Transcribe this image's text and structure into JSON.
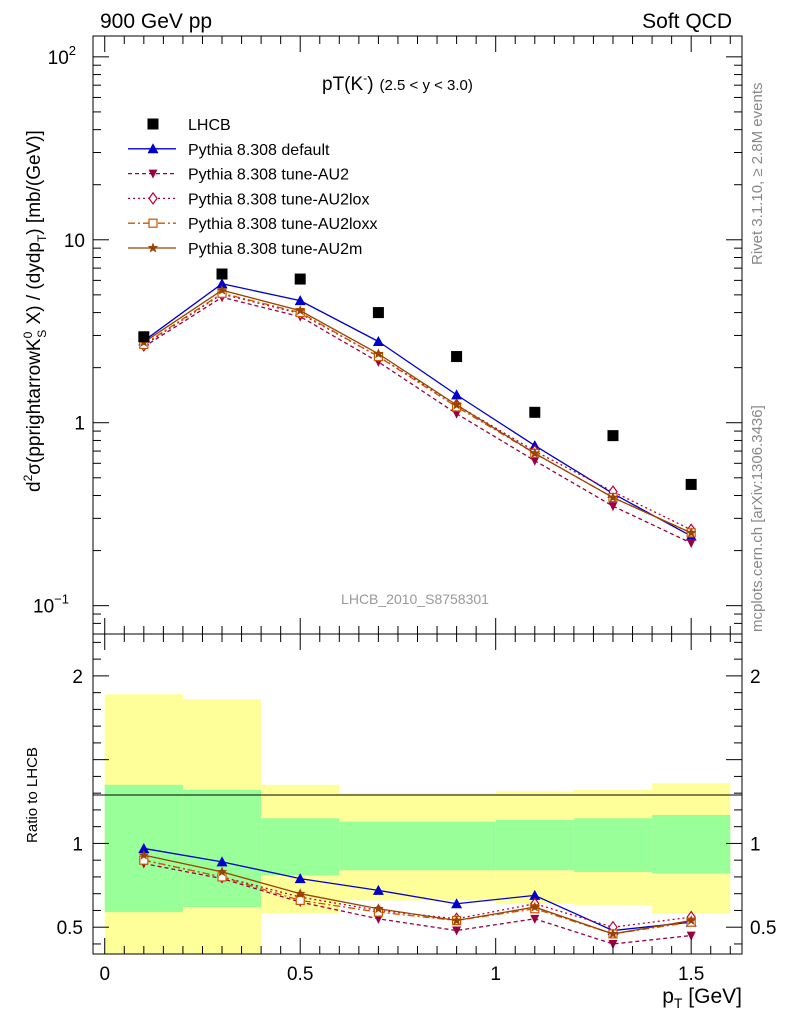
{
  "header": {
    "left": "900 GeV pp",
    "right": "Soft QCD"
  },
  "side_labels": {
    "rivet": "Rivet 3.1.10, ≥ 2.8M events",
    "mcplots": "mcplots.cern.ch [arXiv:1306.3436]"
  },
  "plot_title": {
    "main": "pT(K",
    "sup": "-",
    "close": ")",
    "range": "(2.5 < y < 3.0)"
  },
  "ylabel_parts": {
    "pre": "d",
    "sup2": "2",
    "sigma": "σ(pprightarrowK",
    "sup0": "0",
    "subS": "S",
    "mid": " X) / (dydp",
    "subT": "T",
    "post": ") [mb/(GeV)]"
  },
  "ratio_ylabel": "Ratio to LHCB",
  "xlabel": {
    "p": "p",
    "sub": "T",
    "unit": " [GeV]"
  },
  "analysis_id": "LHCB_2010_S8758301",
  "chart_data": {
    "type": "line",
    "x_range": [
      -0.03,
      1.63
    ],
    "main": {
      "y_scale": "log",
      "y_range": [
        0.07,
        130
      ],
      "y_ticks": [
        {
          "value": 0.1,
          "base": "10",
          "exp": "−1"
        },
        {
          "value": 1,
          "base": "1",
          "exp": ""
        },
        {
          "value": 10,
          "base": "10",
          "exp": ""
        },
        {
          "value": 100,
          "base": "10",
          "exp": "2"
        }
      ]
    },
    "ratio": {
      "y_scale": "linear",
      "y_range": [
        0.34,
        2.25
      ],
      "y_ticks": [
        {
          "value": 0.5,
          "label": "0.5"
        },
        {
          "value": 1,
          "label": "1"
        },
        {
          "value": 2,
          "label": "2"
        }
      ],
      "bins": [
        {
          "lo": 0.0,
          "hi": 0.2,
          "g": [
            0.59,
            1.35
          ],
          "y": [
            0.34,
            1.89
          ]
        },
        {
          "lo": 0.2,
          "hi": 0.4,
          "g": [
            0.62,
            1.32
          ],
          "y": [
            0.34,
            1.86
          ]
        },
        {
          "lo": 0.4,
          "hi": 0.6,
          "g": [
            0.81,
            1.15
          ],
          "y": [
            0.58,
            1.35
          ]
        },
        {
          "lo": 0.6,
          "hi": 0.8,
          "g": [
            0.84,
            1.13
          ],
          "y": [
            0.66,
            1.3
          ]
        },
        {
          "lo": 0.8,
          "hi": 1.0,
          "g": [
            0.84,
            1.13
          ],
          "y": [
            0.66,
            1.3
          ]
        },
        {
          "lo": 1.0,
          "hi": 1.2,
          "g": [
            0.84,
            1.14
          ],
          "y": [
            0.64,
            1.31
          ]
        },
        {
          "lo": 1.2,
          "hi": 1.4,
          "g": [
            0.83,
            1.15
          ],
          "y": [
            0.63,
            1.32
          ]
        },
        {
          "lo": 1.4,
          "hi": 1.6,
          "g": [
            0.82,
            1.17
          ],
          "y": [
            0.58,
            1.36
          ]
        }
      ]
    },
    "x_ticks": [
      {
        "value": 0,
        "label": "0"
      },
      {
        "value": 0.5,
        "label": "0.5"
      },
      {
        "value": 1,
        "label": "1"
      },
      {
        "value": 1.5,
        "label": "1.5"
      }
    ],
    "x": [
      0.1,
      0.3,
      0.5,
      0.7,
      0.9,
      1.1,
      1.3,
      1.5
    ],
    "data": {
      "name": "LHCB",
      "values": [
        2.95,
        6.5,
        6.1,
        4.0,
        2.3,
        1.14,
        0.85,
        0.46
      ]
    },
    "series": [
      {
        "name": "Pythia 8.308 default",
        "color": "#0000cc",
        "marker": "triangle-up",
        "dash": "",
        "values": [
          2.8,
          5.75,
          4.65,
          2.78,
          1.42,
          0.75,
          0.41,
          0.24
        ],
        "ratio": [
          0.97,
          0.89,
          0.79,
          0.72,
          0.64,
          0.69,
          0.48,
          0.53
        ]
      },
      {
        "name": "Pythia 8.308 tune-AU2",
        "color": "#990044",
        "marker": "triangle-down",
        "dash": "4,3",
        "values": [
          2.6,
          4.85,
          3.8,
          2.15,
          1.12,
          0.62,
          0.35,
          0.22
        ],
        "ratio": [
          0.88,
          0.79,
          0.65,
          0.55,
          0.48,
          0.55,
          0.4,
          0.45
        ]
      },
      {
        "name": "Pythia 8.308 tune-AU2lox",
        "color": "#bb0033",
        "marker": "diamond-open",
        "dash": "2,3",
        "values": [
          2.65,
          5.05,
          3.95,
          2.3,
          1.25,
          0.7,
          0.42,
          0.26
        ],
        "ratio": [
          0.9,
          0.8,
          0.68,
          0.6,
          0.55,
          0.64,
          0.5,
          0.56
        ]
      },
      {
        "name": "Pythia 8.308 tune-AU2loxx",
        "color": "#cc5500",
        "marker": "square-open",
        "dash": "7,3,2,3",
        "values": [
          2.68,
          5.1,
          4.0,
          2.3,
          1.22,
          0.68,
          0.39,
          0.25
        ],
        "ratio": [
          0.9,
          0.8,
          0.66,
          0.59,
          0.54,
          0.61,
          0.46,
          0.53
        ]
      },
      {
        "name": "Pythia 8.308 tune-AU2m",
        "color": "#994400",
        "marker": "star",
        "dash": "",
        "values": [
          2.75,
          5.3,
          4.1,
          2.38,
          1.25,
          0.68,
          0.39,
          0.25
        ],
        "ratio": [
          0.93,
          0.83,
          0.7,
          0.61,
          0.54,
          0.62,
          0.46,
          0.54
        ]
      }
    ]
  }
}
